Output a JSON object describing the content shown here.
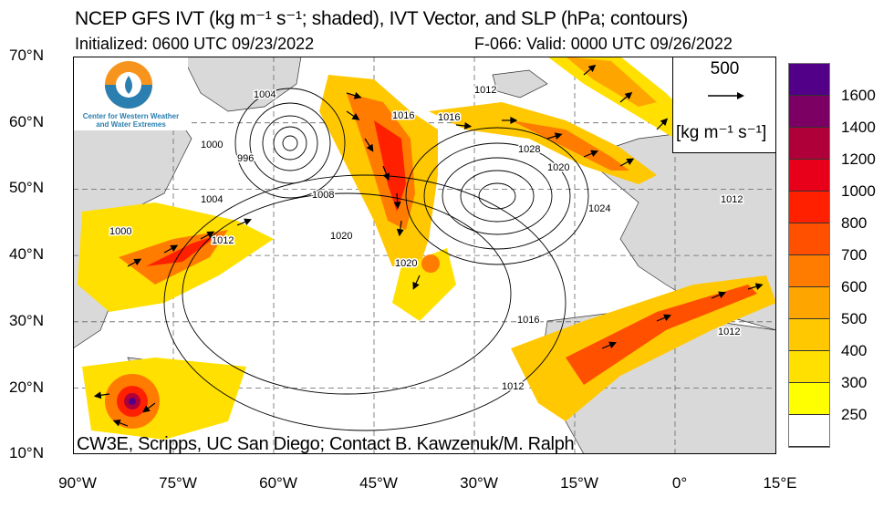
{
  "header": {
    "title": "NCEP GFS IVT (kg m⁻¹ s⁻¹; shaded), IVT Vector, and SLP (hPa; contours)",
    "initialized": "Initialized: 0600 UTC 09/23/2022",
    "valid": "F-066: Valid: 0000 UTC 09/26/2022"
  },
  "map": {
    "lat_labels": [
      "70°N",
      "60°N",
      "50°N",
      "40°N",
      "30°N",
      "20°N",
      "10°N"
    ],
    "lon_labels": [
      "90°W",
      "75°W",
      "60°W",
      "45°W",
      "30°W",
      "15°W",
      "0°",
      "15°E"
    ],
    "extent": {
      "lon": [
        -90,
        15
      ],
      "lat": [
        10,
        70
      ]
    },
    "land_color": "#d9d9d9",
    "contour_labels": [
      "1004",
      "1000",
      "996",
      "1008",
      "1004",
      "1000",
      "1012",
      "1020",
      "1020",
      "1016",
      "1012",
      "1016",
      "1028",
      "1020",
      "1024",
      "1012",
      "1016",
      "1012",
      "1012"
    ],
    "credit": "CW3E, Scripps, UC San Diego; Contact B. Kawzenuk/M. Ralph"
  },
  "logo": {
    "line1": "Center for Western Weather",
    "line2": "and Water Extremes"
  },
  "vector_legend": {
    "value": "500",
    "units": "[kg m⁻¹ s⁻¹]"
  },
  "colorbar": {
    "labels": [
      "1600",
      "1400",
      "1200",
      "1000",
      "800",
      "700",
      "600",
      "500",
      "400",
      "300",
      "250"
    ],
    "colors": [
      "#520087",
      "#7c0063",
      "#b0003a",
      "#e8001a",
      "#ff2000",
      "#ff5000",
      "#ff7c00",
      "#ffa500",
      "#ffc800",
      "#ffe000",
      "#ffff00",
      "#ffffff"
    ]
  }
}
